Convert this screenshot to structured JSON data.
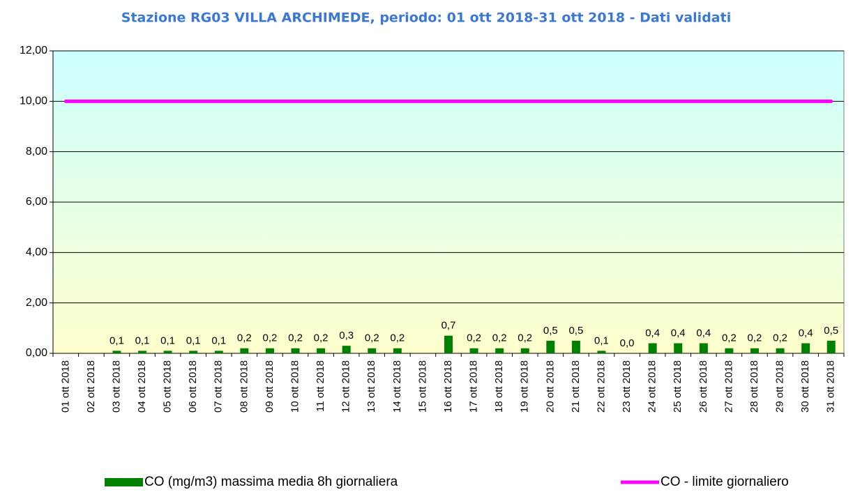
{
  "chart_data": {
    "type": "bar",
    "title": "Stazione RG03 VILLA ARCHIMEDE, periodo: 01 ott 2018-31 ott 2018 - Dati validati",
    "categories": [
      "01 ott 2018",
      "02 ott 2018",
      "03 ott 2018",
      "04 ott 2018",
      "05 ott 2018",
      "06 ott 2018",
      "07 ott 2018",
      "08 ott 2018",
      "09 ott 2018",
      "10 ott 2018",
      "11 ott 2018",
      "12 ott 2018",
      "13 ott 2018",
      "14 ott 2018",
      "15 ott 2018",
      "16 ott 2018",
      "17 ott 2018",
      "18 ott 2018",
      "19 ott 2018",
      "20 ott 2018",
      "21 ott 2018",
      "22 ott 2018",
      "23 ott 2018",
      "24 ott 2018",
      "25 ott 2018",
      "26 ott 2018",
      "27 ott 2018",
      "28 ott 2018",
      "29 ott 2018",
      "30 ott 2018",
      "31 ott 2018"
    ],
    "series": [
      {
        "name": "CO (mg/m3) massima media 8h giornaliera",
        "type": "bar",
        "color": "#008000",
        "values": [
          null,
          null,
          0.1,
          0.1,
          0.1,
          0.1,
          0.1,
          0.2,
          0.2,
          0.2,
          0.2,
          0.3,
          0.2,
          0.2,
          null,
          0.7,
          0.2,
          0.2,
          0.2,
          0.5,
          0.5,
          0.1,
          0.0,
          0.4,
          0.4,
          0.4,
          0.2,
          0.2,
          0.2,
          0.4,
          0.5
        ],
        "value_labels": [
          null,
          null,
          "0,1",
          "0,1",
          "0,1",
          "0,1",
          "0,1",
          "0,2",
          "0,2",
          "0,2",
          "0,2",
          "0,3",
          "0,2",
          "0,2",
          null,
          "0,7",
          "0,2",
          "0,2",
          "0,2",
          "0,5",
          "0,5",
          "0,1",
          "0,0",
          "0,4",
          "0,4",
          "0,4",
          "0,2",
          "0,2",
          "0,2",
          "0,4",
          "0,5"
        ]
      },
      {
        "name": "CO - limite giornaliero",
        "type": "line",
        "color": "#ff00ff",
        "values": [
          10,
          10,
          10,
          10,
          10,
          10,
          10,
          10,
          10,
          10,
          10,
          10,
          10,
          10,
          10,
          10,
          10,
          10,
          10,
          10,
          10,
          10,
          10,
          10,
          10,
          10,
          10,
          10,
          10,
          10,
          10
        ]
      }
    ],
    "ylim": [
      0,
      12
    ],
    "yticks": [
      {
        "value": 0,
        "label": "0,00"
      },
      {
        "value": 2,
        "label": "2,00"
      },
      {
        "value": 4,
        "label": "4,00"
      },
      {
        "value": 6,
        "label": "6,00"
      },
      {
        "value": 8,
        "label": "8,00"
      },
      {
        "value": 10,
        "label": "10,00"
      },
      {
        "value": 12,
        "label": "12,00"
      }
    ],
    "grid": true
  }
}
